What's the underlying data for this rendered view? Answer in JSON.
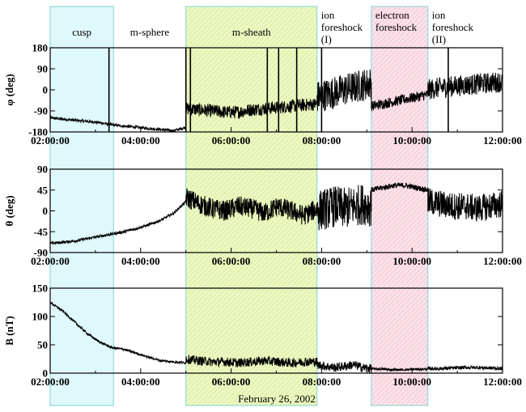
{
  "footer_label": "February 26, 2002",
  "regions": [
    {
      "label_lines": [
        "cusp"
      ],
      "start": 2.0,
      "end": 3.4,
      "style": "cyan"
    },
    {
      "label_lines": [
        "m-sphere"
      ],
      "start": 3.4,
      "end": 5.0,
      "style": "none"
    },
    {
      "label_lines": [
        "m-sheath"
      ],
      "start": 5.0,
      "end": 7.9,
      "style": "green"
    },
    {
      "label_lines": [
        "ion",
        "foreshock",
        "(I)"
      ],
      "start": 7.9,
      "end": 9.1,
      "style": "none"
    },
    {
      "label_lines": [
        "electron",
        "foreshock"
      ],
      "start": 9.1,
      "end": 10.35,
      "style": "pink"
    },
    {
      "label_lines": [
        "ion",
        "foreshock",
        "(II)"
      ],
      "start": 10.35,
      "end": 12.0,
      "style": "none"
    }
  ],
  "colors": {
    "cusp_fill": "#dff8fb",
    "sheath_fill": "#eef8c4",
    "electron_fill": "#fbe3ea",
    "region_border": "#7fd6d6",
    "trace": "#000000"
  },
  "chart_data": [
    {
      "type": "line",
      "ylabel": "φ (deg)",
      "xlim": [
        2,
        12
      ],
      "ylim": [
        -180,
        180
      ],
      "yticks": [
        180,
        90,
        0,
        -90,
        -180
      ],
      "ytick_labels": [
        "180",
        "90",
        "0",
        "-90",
        "-180"
      ],
      "xticks": [
        "02:00:00",
        "04:00:00",
        "06:00:00",
        "08:00:00",
        "10:00:00",
        "12:00:00"
      ],
      "segments": [
        {
          "start": 2.0,
          "end": 5.0,
          "y": [
            -120,
            -125,
            -130,
            -135,
            -140,
            -150,
            -155,
            -160,
            -165,
            -170,
            -175,
            -160
          ],
          "noise": 6
        },
        {
          "start": 5.0,
          "end": 7.9,
          "y": [
            -80,
            -85,
            -90,
            -95,
            -95,
            -85,
            -80,
            -75,
            -70,
            -65,
            -60
          ],
          "noise": 28
        },
        {
          "start": 7.9,
          "end": 9.1,
          "y": [
            -30,
            -20,
            -10,
            0,
            10,
            20,
            30
          ],
          "noise": 70
        },
        {
          "start": 9.1,
          "end": 10.35,
          "y": [
            -70,
            -60,
            -50,
            -40,
            -30,
            -20
          ],
          "noise": 22
        },
        {
          "start": 10.35,
          "end": 12.0,
          "y": [
            0,
            10,
            15,
            20,
            25,
            30,
            35
          ],
          "noise": 45
        }
      ],
      "spikes": [
        3.3,
        5.0,
        5.1,
        6.8,
        7.05,
        7.45,
        8.0,
        10.8
      ]
    },
    {
      "type": "line",
      "ylabel": "θ (deg)",
      "xlim": [
        2,
        12
      ],
      "ylim": [
        -90,
        90
      ],
      "yticks": [
        90,
        45,
        0,
        -45,
        -90
      ],
      "ytick_labels": [
        "90",
        "45",
        "0",
        "-45",
        "-90"
      ],
      "xticks": [
        "02:00:00",
        "04:00:00",
        "06:00:00",
        "08:00:00",
        "10:00:00",
        "12:00:00"
      ],
      "segments": [
        {
          "start": 2.0,
          "end": 5.0,
          "y": [
            -70,
            -68,
            -65,
            -60,
            -55,
            -50,
            -45,
            -38,
            -30,
            -20,
            -5,
            20
          ],
          "noise": 3
        },
        {
          "start": 5.0,
          "end": 7.9,
          "y": [
            30,
            15,
            5,
            0,
            10,
            5,
            -5,
            10,
            0,
            -10,
            5
          ],
          "noise": 22
        },
        {
          "start": 7.9,
          "end": 9.1,
          "y": [
            0,
            5,
            10,
            5,
            10,
            15,
            10
          ],
          "noise": 45
        },
        {
          "start": 9.1,
          "end": 10.35,
          "y": [
            45,
            50,
            55,
            55,
            50,
            45
          ],
          "noise": 6
        },
        {
          "start": 10.35,
          "end": 12.0,
          "y": [
            20,
            15,
            10,
            10,
            5,
            10,
            15
          ],
          "noise": 30
        }
      ],
      "spikes": []
    },
    {
      "type": "line",
      "ylabel": "B (nT)",
      "xlim": [
        2,
        12
      ],
      "ylim": [
        0,
        150
      ],
      "yticks": [
        150,
        100,
        50,
        0
      ],
      "ytick_labels": [
        "150",
        "100",
        "50",
        "0"
      ],
      "xticks": [
        "02:00:00",
        "04:00:00",
        "06:00:00",
        "08:00:00",
        "10:00:00",
        "12:00:00"
      ],
      "segments": [
        {
          "start": 2.0,
          "end": 5.0,
          "y": [
            125,
            110,
            90,
            70,
            55,
            45,
            42,
            35,
            28,
            22,
            20,
            18
          ],
          "noise": 2
        },
        {
          "start": 5.0,
          "end": 7.9,
          "y": [
            25,
            22,
            20,
            20,
            18,
            20,
            22,
            20,
            18,
            20,
            20
          ],
          "noise": 8
        },
        {
          "start": 7.9,
          "end": 9.1,
          "y": [
            15,
            12,
            10,
            12,
            15,
            10,
            8
          ],
          "noise": 8
        },
        {
          "start": 9.1,
          "end": 10.35,
          "y": [
            8,
            7,
            6,
            6,
            7,
            7
          ],
          "noise": 2
        },
        {
          "start": 10.35,
          "end": 12.0,
          "y": [
            8,
            8,
            9,
            10,
            10,
            9,
            8
          ],
          "noise": 3
        }
      ],
      "spikes": []
    }
  ]
}
